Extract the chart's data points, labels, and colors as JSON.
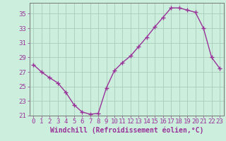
{
  "x": [
    0,
    1,
    2,
    3,
    4,
    5,
    6,
    7,
    8,
    9,
    10,
    11,
    12,
    13,
    14,
    15,
    16,
    17,
    18,
    19,
    20,
    21,
    22,
    23
  ],
  "y": [
    28.0,
    27.0,
    26.2,
    25.5,
    24.2,
    22.5,
    21.5,
    21.2,
    21.3,
    24.8,
    27.2,
    28.3,
    29.2,
    30.5,
    31.8,
    33.2,
    34.5,
    35.8,
    35.8,
    35.5,
    35.2,
    33.0,
    29.0,
    27.5
  ],
  "line_color": "#993399",
  "marker": "+",
  "marker_size": 4,
  "marker_linewidth": 1.0,
  "line_width": 1.0,
  "bg_color": "#cceedd",
  "grid_color": "#aaccbb",
  "axis_color": "#777777",
  "tick_color": "#993399",
  "xlabel": "Windchill (Refroidissement éolien,°C)",
  "ylabel": "",
  "ylim": [
    21,
    36.5
  ],
  "xlim": [
    -0.5,
    23.5
  ],
  "yticks": [
    21,
    23,
    25,
    27,
    29,
    31,
    33,
    35
  ],
  "xticks": [
    0,
    1,
    2,
    3,
    4,
    5,
    6,
    7,
    8,
    9,
    10,
    11,
    12,
    13,
    14,
    15,
    16,
    17,
    18,
    19,
    20,
    21,
    22,
    23
  ],
  "tick_fontsize": 6.5,
  "xlabel_fontsize": 7.0
}
